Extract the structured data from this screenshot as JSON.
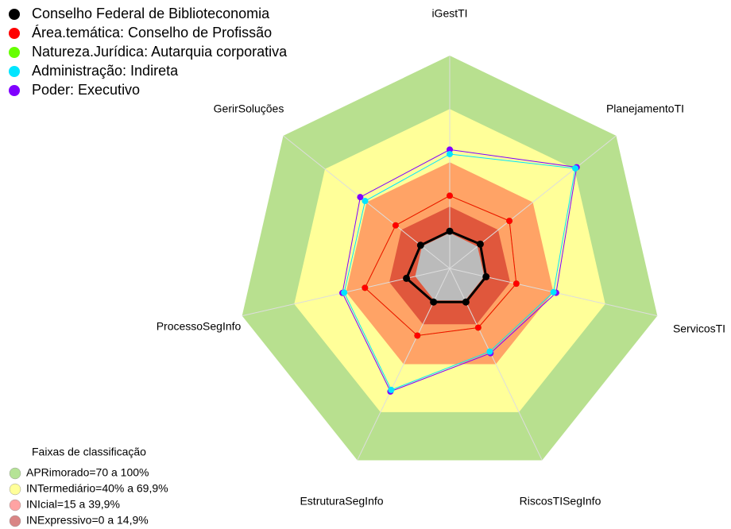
{
  "chart_data": {
    "type": "radar",
    "axes": [
      "iGestTI",
      "PlanejamentoTI",
      "ServicosTI",
      "RiscosTISegInfo",
      "EstruturaSegInfo",
      "ProcessoSegInfo",
      "GerirSoluções"
    ],
    "rlim": [
      -20,
      100
    ],
    "series": [
      {
        "name": "Conselho Federal de Biblioteconomia",
        "color": "#000000",
        "values": [
          1,
          2,
          1,
          1,
          1,
          5,
          1
        ]
      },
      {
        "name": "Área.temática: Conselho de Profissão",
        "color": "#ff0000",
        "values": [
          21,
          23,
          18.5,
          17,
          22,
          29,
          19
        ]
      },
      {
        "name": "Natureza.Jurídica: Autarquia corporativa",
        "color": "#66ff00",
        "values": [
          21,
          23,
          18.5,
          17,
          22,
          29,
          19
        ]
      },
      {
        "name": "Administração: Indireta",
        "color": "#00e5ff",
        "values": [
          44.5,
          70.5,
          40,
          32,
          56,
          41,
          41
        ]
      },
      {
        "name": "Poder: Executivo",
        "color": "#8000ff",
        "values": [
          47,
          71.5,
          41.5,
          33,
          57,
          42,
          44.5
        ]
      }
    ],
    "bands_title": "Faixas de classificação",
    "bands": [
      {
        "label": "APRimorado=70 a 100%",
        "min": 70,
        "max": 100,
        "color": "#b8e08f",
        "legend_color": "#b5e396"
      },
      {
        "label": "INTermediário=40% a 69,9%",
        "min": 40,
        "max": 69.9,
        "color": "#ffff99",
        "legend_color": "#ffff99"
      },
      {
        "label": "INIcial=15 a 39,9%",
        "min": 15,
        "max": 39.9,
        "color": "#ffa366",
        "legend_color": "#ffa3a3"
      },
      {
        "label": "INExpressivo=0 a 14,9%",
        "min": 0,
        "max": 14.9,
        "color": "#e0573c",
        "legend_color": "#d98585"
      }
    ],
    "center_color": "#bbbbbb"
  }
}
